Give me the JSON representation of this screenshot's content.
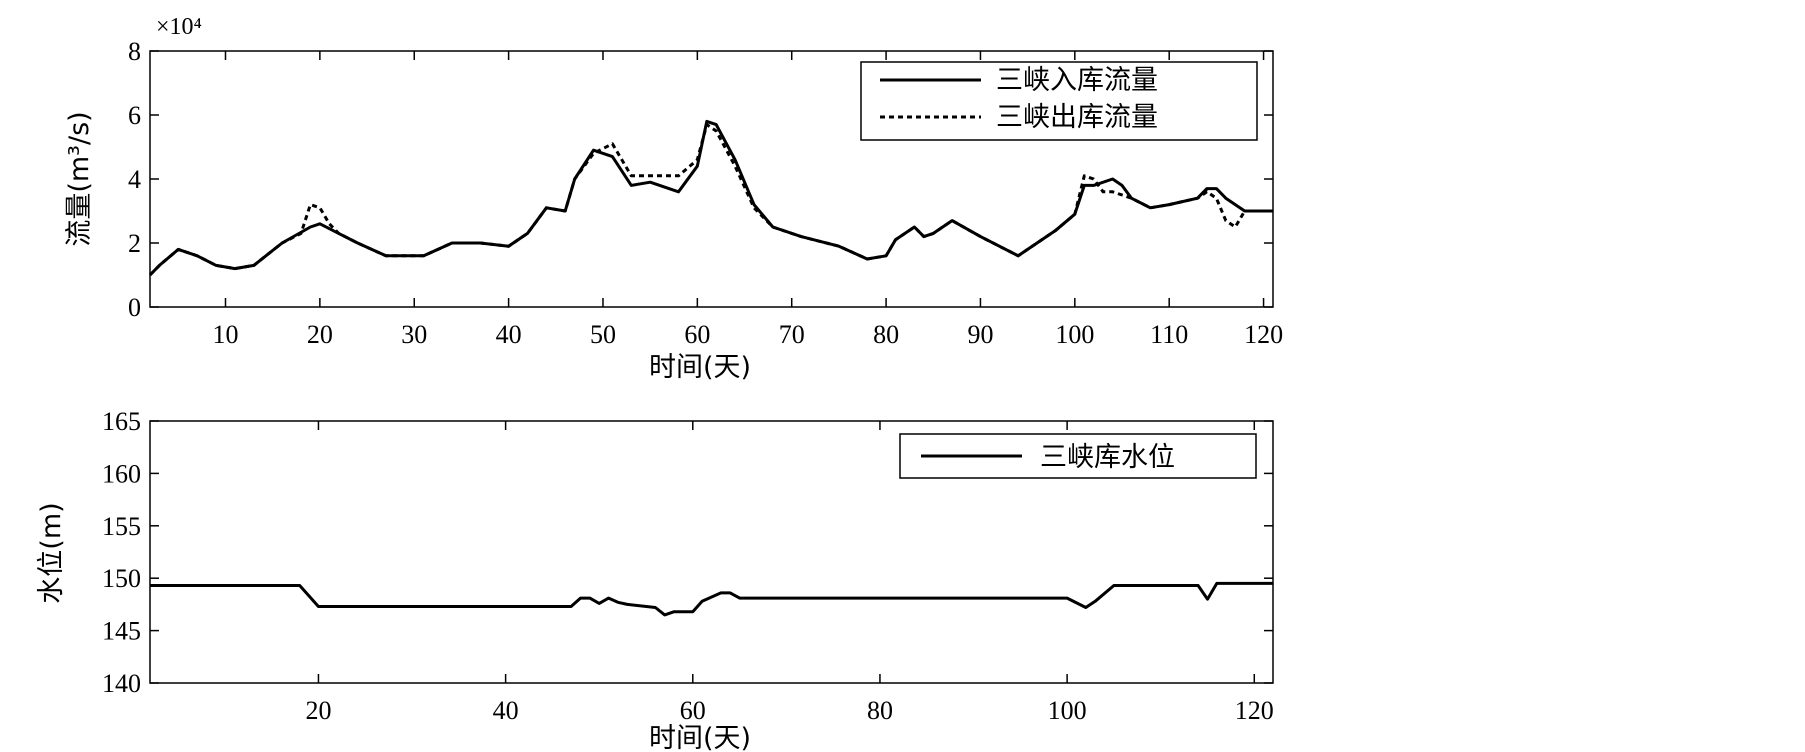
{
  "chart_data": [
    {
      "type": "line",
      "ylabel": "流量(m³/s)",
      "xlabel": "时间(天)",
      "y_scale_label": "×10⁴",
      "xlim": [
        2,
        121
      ],
      "ylim": [
        0,
        8
      ],
      "xticks": [
        10,
        20,
        30,
        40,
        50,
        60,
        70,
        80,
        90,
        100,
        110,
        120
      ],
      "yticks": [
        0,
        2,
        4,
        6,
        8
      ],
      "grid": false,
      "legend_position": "top-right",
      "series": [
        {
          "name": "三峡入库流量",
          "style": "solid",
          "x": [
            2,
            3,
            5,
            7,
            9,
            11,
            13,
            16,
            19,
            20,
            22,
            24,
            27,
            29,
            31,
            34,
            37,
            40,
            42,
            44,
            46,
            47,
            49,
            51,
            53,
            55,
            58,
            60,
            61,
            62,
            64,
            66,
            68,
            71,
            75,
            78,
            80,
            81,
            83,
            84,
            85,
            87,
            90,
            94,
            95,
            98,
            100,
            101,
            102,
            104,
            105,
            106,
            108,
            110,
            113,
            114,
            115,
            116,
            118,
            121
          ],
          "y": [
            1.0,
            1.3,
            1.8,
            1.6,
            1.3,
            1.2,
            1.3,
            2.0,
            2.5,
            2.6,
            2.3,
            2.0,
            1.6,
            1.6,
            1.6,
            2.0,
            2.0,
            1.9,
            2.3,
            3.1,
            3.0,
            4.0,
            4.9,
            4.7,
            3.8,
            3.9,
            3.6,
            4.4,
            5.8,
            5.7,
            4.6,
            3.2,
            2.5,
            2.2,
            1.9,
            1.5,
            1.6,
            2.1,
            2.5,
            2.2,
            2.3,
            2.7,
            2.2,
            1.6,
            1.8,
            2.4,
            2.9,
            3.8,
            3.8,
            4.0,
            3.8,
            3.4,
            3.1,
            3.2,
            3.4,
            3.7,
            3.7,
            3.4,
            3.0,
            3.0
          ]
        },
        {
          "name": "三峡出库流量",
          "style": "dotted",
          "x": [
            2,
            3,
            5,
            7,
            9,
            11,
            13,
            16,
            18,
            19,
            20,
            21,
            22,
            24,
            27,
            29,
            31,
            34,
            37,
            40,
            42,
            44,
            46,
            47,
            49,
            51,
            53,
            55,
            58,
            60,
            61,
            62,
            64,
            66,
            68,
            71,
            75,
            78,
            80,
            81,
            83,
            84,
            85,
            87,
            90,
            94,
            95,
            98,
            100,
            101,
            102,
            103,
            104,
            106,
            108,
            110,
            113,
            114,
            115,
            116,
            117,
            118,
            121
          ],
          "y": [
            1.0,
            1.3,
            1.8,
            1.6,
            1.3,
            1.2,
            1.3,
            2.0,
            2.3,
            3.2,
            3.1,
            2.6,
            2.3,
            2.0,
            1.6,
            1.6,
            1.6,
            2.0,
            2.0,
            1.9,
            2.3,
            3.1,
            3.0,
            4.0,
            4.8,
            5.1,
            4.1,
            4.1,
            4.1,
            4.6,
            5.7,
            5.5,
            4.4,
            3.1,
            2.5,
            2.2,
            1.9,
            1.5,
            1.6,
            2.1,
            2.5,
            2.2,
            2.3,
            2.7,
            2.2,
            1.6,
            1.8,
            2.4,
            2.9,
            4.1,
            4.0,
            3.6,
            3.6,
            3.4,
            3.1,
            3.2,
            3.4,
            3.6,
            3.4,
            2.7,
            2.5,
            3.0,
            3.0
          ]
        }
      ]
    },
    {
      "type": "line",
      "ylabel": "水位(m)",
      "xlabel": "时间(天)",
      "xlim": [
        2,
        122
      ],
      "ylim": [
        140,
        165
      ],
      "xticks": [
        20,
        40,
        60,
        80,
        100,
        120
      ],
      "yticks": [
        140,
        145,
        150,
        155,
        160,
        165
      ],
      "grid": false,
      "legend_position": "top-right",
      "series": [
        {
          "name": "三峡库水位",
          "style": "solid",
          "x": [
            2,
            18,
            20,
            47,
            48,
            49,
            50,
            51,
            52,
            53,
            56,
            57,
            58,
            60,
            61,
            63,
            64,
            65,
            100,
            102,
            103,
            105,
            114,
            115,
            116,
            122
          ],
          "y": [
            149.3,
            149.3,
            147.3,
            147.3,
            148.1,
            148.1,
            147.6,
            148.1,
            147.7,
            147.5,
            147.2,
            146.5,
            146.8,
            146.8,
            147.8,
            148.6,
            148.6,
            148.1,
            148.1,
            147.2,
            147.8,
            149.3,
            149.3,
            148.0,
            149.5,
            149.5
          ]
        }
      ]
    }
  ]
}
